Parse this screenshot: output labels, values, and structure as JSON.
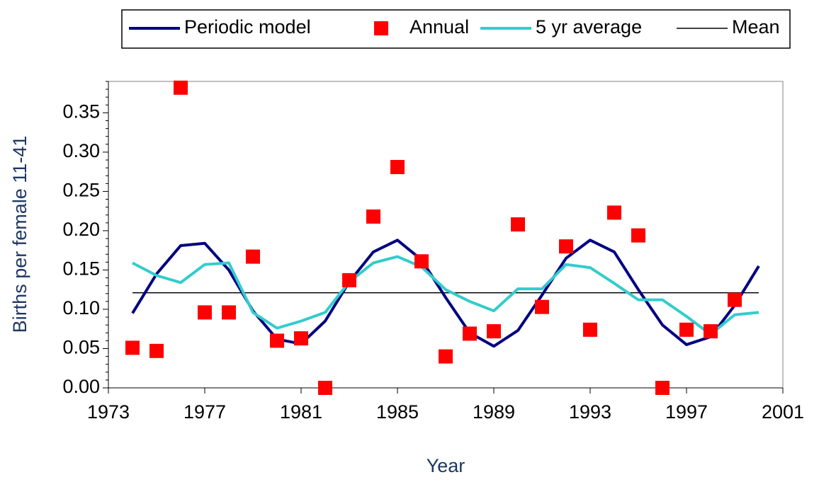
{
  "chart_data": {
    "type": "line",
    "x_label": "Year",
    "y_label": "Births per female 11-41",
    "x": [
      1974,
      1975,
      1976,
      1977,
      1978,
      1979,
      1980,
      1981,
      1982,
      1983,
      1984,
      1985,
      1986,
      1987,
      1988,
      1989,
      1990,
      1991,
      1992,
      1993,
      1994,
      1995,
      1996,
      1997,
      1998,
      1999,
      2000
    ],
    "series": [
      {
        "name": "Periodic model",
        "color": "#000080",
        "style": "line",
        "values": [
          0.095,
          0.145,
          0.181,
          0.184,
          0.15,
          0.098,
          0.062,
          0.056,
          0.085,
          0.135,
          0.173,
          0.188,
          0.163,
          0.115,
          0.07,
          0.053,
          0.073,
          0.118,
          0.165,
          0.188,
          0.173,
          0.125,
          0.08,
          0.055,
          0.065,
          0.105,
          0.155
        ]
      },
      {
        "name": "Annual",
        "color": "#ff0000",
        "style": "marker",
        "values": [
          0.051,
          0.047,
          0.382,
          0.096,
          0.096,
          0.167,
          0.06,
          0.063,
          0,
          0.137,
          0.218,
          0.281,
          0.161,
          0.04,
          0.069,
          0.072,
          0.208,
          0.103,
          0.18,
          0.074,
          0.223,
          0.194,
          0,
          0.074,
          0.072,
          0.112,
          null
        ]
      },
      {
        "name": "5 yr average",
        "color": "#33cccc",
        "style": "line",
        "values": [
          0.159,
          0.143,
          0.134,
          0.157,
          0.159,
          0.096,
          0.076,
          0.085,
          0.096,
          0.135,
          0.159,
          0.167,
          0.154,
          0.125,
          0.11,
          0.098,
          0.126,
          0.126,
          0.157,
          0.153,
          0.133,
          0.112,
          0.112,
          0.091,
          0.068,
          0.093,
          0.096
        ]
      },
      {
        "name": "Mean",
        "color": "#000000",
        "style": "hline",
        "value": 0.121
      }
    ],
    "xlim": [
      1973,
      2001
    ],
    "xticks": [
      1973,
      1977,
      1981,
      1985,
      1989,
      1993,
      1997,
      2001
    ],
    "ylim": [
      0,
      0.39
    ],
    "yticks": [
      {
        "value": 0,
        "label": "0.00"
      },
      0.05,
      {
        "value": 0.1,
        "label": "0.10"
      },
      0.15,
      {
        "value": 0.2,
        "label": "0.20"
      },
      0.25,
      {
        "value": 0.3,
        "label": "0.30"
      },
      0.35
    ],
    "legend": "top"
  }
}
